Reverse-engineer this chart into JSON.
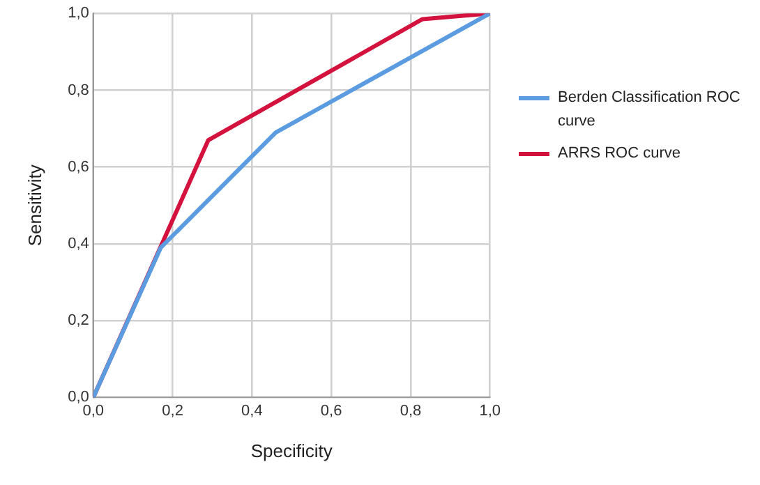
{
  "chart_data": {
    "type": "line",
    "xlabel": "Specificity",
    "ylabel": "Sensitivity",
    "series": [
      {
        "name": "Berden Classification ROC curve",
        "color": "#5b9bdf",
        "x": [
          0,
          0.17,
          0.46,
          1
        ],
        "values": [
          0,
          0.39,
          0.69,
          1
        ]
      },
      {
        "name": "ARRS ROC curve",
        "color": "#d4123e",
        "x": [
          0,
          0.29,
          0.83,
          1
        ],
        "values": [
          0,
          0.67,
          0.985,
          1
        ]
      }
    ],
    "xlim": [
      0,
      1
    ],
    "ylim": [
      0,
      1
    ],
    "xticks": [
      {
        "value": 0,
        "label": "0,0"
      },
      {
        "value": 0.2,
        "label": "0,2"
      },
      {
        "value": 0.4,
        "label": "0,4"
      },
      {
        "value": 0.6,
        "label": "0,6"
      },
      {
        "value": 0.8,
        "label": "0,8"
      },
      {
        "value": 1,
        "label": "1,0"
      }
    ],
    "yticks": [
      {
        "value": 0,
        "label": "0,0"
      },
      {
        "value": 0.2,
        "label": "0,2"
      },
      {
        "value": 0.4,
        "label": "0,4"
      },
      {
        "value": 0.6,
        "label": "0,6"
      },
      {
        "value": 0.8,
        "label": "0,8"
      },
      {
        "value": 1,
        "label": "1,0"
      }
    ],
    "grid": true,
    "legend": "right",
    "marker": "none",
    "line_style": "solid"
  }
}
